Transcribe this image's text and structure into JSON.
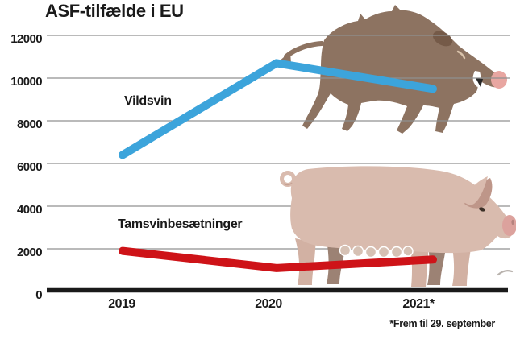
{
  "title": "ASF-tilfælde i EU",
  "footnote": "*Frem til 29. september",
  "chart_data": {
    "type": "line",
    "title": "ASF-tilfælde i EU",
    "categories": [
      "2019",
      "2020",
      "2021*"
    ],
    "xticks": [
      "2019",
      "2020",
      "2021*"
    ],
    "yticks": [
      0,
      2000,
      4000,
      6000,
      8000,
      10000,
      12000
    ],
    "ylim": [
      0,
      12000
    ],
    "grid": "horizontal",
    "legend_position": "inline-labels",
    "annotation": "*Frem til 29. september",
    "series": [
      {
        "name": "Vildsvin",
        "color": "#3CA4DB",
        "values": [
          6400,
          10700,
          9500
        ]
      },
      {
        "name": "Tamsvinbesætninger",
        "color": "#CE1318",
        "values": [
          1900,
          1100,
          1500
        ]
      }
    ],
    "illustrations": [
      "wild-boar",
      "domestic-pig"
    ],
    "colors": {
      "axis": "#1a1a1a",
      "gridline": "#909090",
      "boar_body": "#8D7361",
      "boar_dark": "#755A48",
      "boar_nose": "#E8A6A1",
      "pig_body": "#D9BBAE",
      "pig_far_leg": "#9C8274",
      "pig_snout": "#DCA29D"
    }
  }
}
